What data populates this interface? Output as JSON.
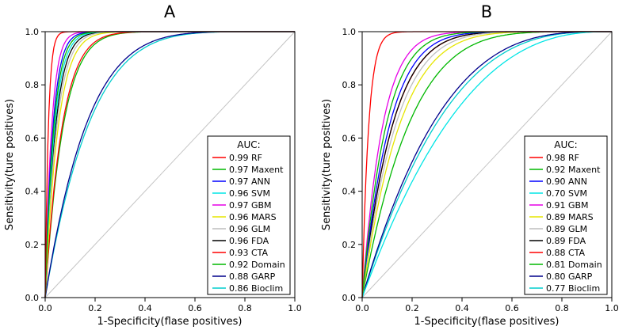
{
  "figure": {
    "background": "#FFFFFF",
    "diagonal_color": "#C4C4C4",
    "axis_color": "#000000"
  },
  "chart_data": [
    {
      "type": "line",
      "title": "A",
      "xlabel": "1-Specificity(flase positives)",
      "ylabel": "Sensitivity(ture positives)",
      "xlim": [
        0,
        1
      ],
      "ylim": [
        0,
        1
      ],
      "xticks": [
        0.0,
        0.2,
        0.4,
        0.6,
        0.8,
        1.0
      ],
      "yticks": [
        0.0,
        0.2,
        0.4,
        0.6,
        0.8,
        1.0
      ],
      "grid": false,
      "diagonal_reference_line": true,
      "legend": {
        "position": "lower right",
        "title": "AUC:"
      },
      "series": [
        {
          "name": "RF",
          "auc": 0.99,
          "color": "#FF0000"
        },
        {
          "name": "Maxent",
          "auc": 0.97,
          "color": "#00B800"
        },
        {
          "name": "ANN",
          "auc": 0.97,
          "color": "#0000FF"
        },
        {
          "name": "SVM",
          "auc": 0.96,
          "color": "#00E5E5"
        },
        {
          "name": "GBM",
          "auc": 0.97,
          "color": "#E600E6"
        },
        {
          "name": "MARS",
          "auc": 0.96,
          "color": "#E6E600"
        },
        {
          "name": "GLM",
          "auc": 0.96,
          "color": "#BEBEBE"
        },
        {
          "name": "FDA",
          "auc": 0.96,
          "color": "#000000"
        },
        {
          "name": "CTA",
          "auc": 0.93,
          "color": "#FF0000"
        },
        {
          "name": "Domain",
          "auc": 0.92,
          "color": "#00B800"
        },
        {
          "name": "GARP",
          "auc": 0.88,
          "color": "#00008B"
        },
        {
          "name": "Bioclim",
          "auc": 0.86,
          "color": "#00CDCD"
        }
      ]
    },
    {
      "type": "line",
      "title": "B",
      "xlabel": "1-Specificity(flase positives)",
      "ylabel": "Sensitivity(ture positives)",
      "xlim": [
        0,
        1
      ],
      "ylim": [
        0,
        1
      ],
      "xticks": [
        0.0,
        0.2,
        0.4,
        0.6,
        0.8,
        1.0
      ],
      "yticks": [
        0.0,
        0.2,
        0.4,
        0.6,
        0.8,
        1.0
      ],
      "grid": false,
      "diagonal_reference_line": true,
      "legend": {
        "position": "lower right",
        "title": "AUC:"
      },
      "series": [
        {
          "name": "RF",
          "auc": 0.98,
          "color": "#FF0000"
        },
        {
          "name": "Maxent",
          "auc": 0.92,
          "color": "#00B800"
        },
        {
          "name": "ANN",
          "auc": 0.9,
          "color": "#0000FF"
        },
        {
          "name": "SVM",
          "auc": 0.7,
          "color": "#00E5E5"
        },
        {
          "name": "GBM",
          "auc": 0.91,
          "color": "#E600E6"
        },
        {
          "name": "MARS",
          "auc": 0.89,
          "color": "#E6E600"
        },
        {
          "name": "GLM",
          "auc": 0.89,
          "color": "#BEBEBE"
        },
        {
          "name": "FDA",
          "auc": 0.89,
          "color": "#000000"
        },
        {
          "name": "CTA",
          "auc": 0.88,
          "color": "#FF0000"
        },
        {
          "name": "Domain",
          "auc": 0.81,
          "color": "#00B800"
        },
        {
          "name": "GARP",
          "auc": 0.8,
          "color": "#00008B"
        },
        {
          "name": "Bioclim",
          "auc": 0.77,
          "color": "#00CDCD"
        }
      ]
    }
  ]
}
